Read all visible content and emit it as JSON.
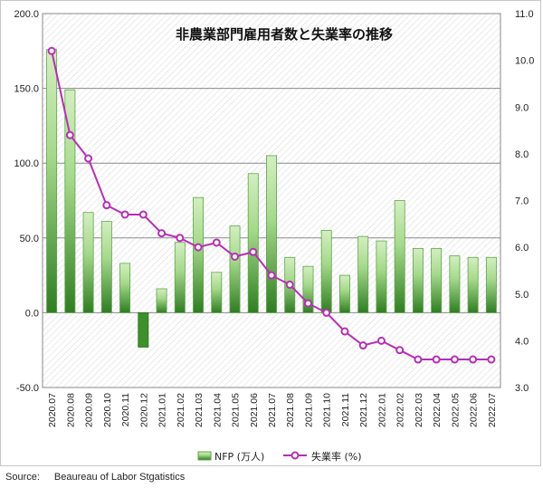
{
  "chart_data": {
    "type": "bar+line",
    "title": "非農業部門雇用者数と失業率の推移",
    "categories": [
      "2020.07",
      "2020.08",
      "2020.09",
      "2020.10",
      "2020.11",
      "2020.12",
      "2021.01",
      "2021.02",
      "2021.03",
      "2021.04",
      "2021.05",
      "2021.06",
      "2021.07",
      "2021.08",
      "2021.09",
      "2021.10",
      "2021.11",
      "2021.12",
      "2022.01",
      "2022.02",
      "2022.03",
      "2022.04",
      "2022.05",
      "2022.06",
      "2022.07"
    ],
    "series": [
      {
        "name": "NFP (万人)",
        "type": "bar",
        "axis": "left",
        "values": [
          176,
          149,
          67,
          61,
          33,
          -23,
          16,
          47,
          77,
          27,
          58,
          93,
          105,
          37,
          31,
          55,
          25,
          51,
          48,
          75,
          43,
          43,
          38,
          37,
          37
        ]
      },
      {
        "name": "失業率 (%)",
        "type": "line",
        "axis": "right",
        "values": [
          10.2,
          8.4,
          7.9,
          6.9,
          6.7,
          6.7,
          6.3,
          6.2,
          6.0,
          6.1,
          5.8,
          5.9,
          5.4,
          5.2,
          4.8,
          4.6,
          4.2,
          3.9,
          4.0,
          3.8,
          3.6,
          3.6,
          3.6,
          3.6,
          3.6
        ]
      }
    ],
    "y_left": {
      "ylim": [
        -50,
        200
      ],
      "ticks": [
        "-50.0",
        "0.0",
        "50.0",
        "100.0",
        "150.0",
        "200.0"
      ]
    },
    "y_right": {
      "ylim": [
        3.0,
        11.0
      ],
      "ticks": [
        "3.0",
        "4.0",
        "5.0",
        "6.0",
        "7.0",
        "8.0",
        "9.0",
        "10.0",
        "11.0"
      ]
    },
    "legend": {
      "position": "bottom"
    },
    "grid": true,
    "colors": {
      "bar_dark": "#3f8f2c",
      "bar_light": "#cdebb8",
      "bar_border": "#5ea54a",
      "line": "#b52fb5",
      "marker_fill": "#ffffff"
    }
  },
  "source": {
    "label": "Source:",
    "text": "Beaureau of Labor Stgatistics"
  }
}
